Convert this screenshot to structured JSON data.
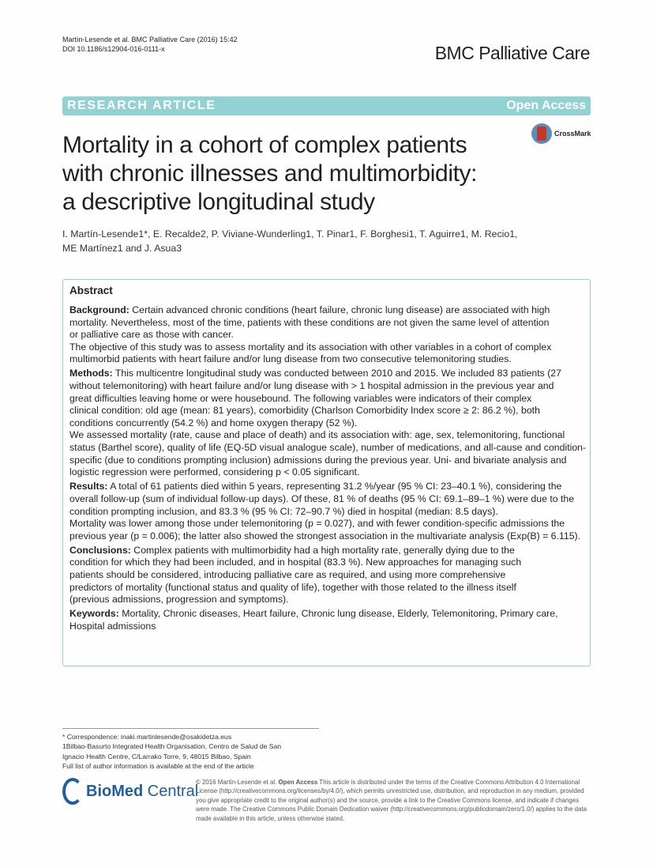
{
  "header": {
    "running_line1": "Martín-Lesende et al. BMC Palliative Care (2016) 15:42",
    "doi": "DOI 10.1186/s12904-016-0111-x",
    "journal": "BMC Palliative Care"
  },
  "banner": {
    "type": "RESEARCH ARTICLE",
    "access": "Open Access"
  },
  "crossmark": "CrossMark",
  "title_lines": [
    "Mortality in a cohort of complex patients",
    "with chronic illnesses and multimorbidity:",
    "a descriptive longitudinal study"
  ],
  "authors": {
    "line1": "I. Martín-Lesende1*, E. Recalde2, P. Viviane-Wunderling1, T. Pinar1, F. Borghesi1, T. Aguirre1, M. Recio1,",
    "line2": "ME Martínez1 and J. Asua3"
  },
  "abstract": {
    "heading": "Abstract",
    "paragraphs": [
      {
        "label": "Background:",
        "lines": [
          " Certain advanced chronic conditions (heart failure, chronic lung disease) are associated with high",
          "mortality. Nevertheless, most of the time, patients with these conditions are not given the same level of attention",
          "or palliative care as those with cancer.",
          "The objective of this study was to assess mortality and its association with other variables in a cohort of complex",
          "multimorbid patients with heart failure and/or lung disease from two consecutive telemonitoring studies."
        ]
      },
      {
        "label": "Methods:",
        "lines": [
          " This multicentre longitudinal study was conducted between 2010 and 2015. We included 83 patients (27",
          "without telemonitoring) with heart failure and/or lung disease with > 1 hospital admission in the previous year and",
          "great difficulties leaving home or were housebound. The following variables were indicators of their complex",
          "clinical condition: old age (mean: 81 years), comorbidity (Charlson Comorbidity Index score ≥ 2: 86.2 %), both",
          "conditions concurrently (54.2 %) and home oxygen therapy (52 %).",
          "We assessed mortality (rate, cause and place of death) and its association with: age, sex, telemonitoring, functional",
          "status (Barthel score), quality of life (EQ-5D visual analogue scale), number of medications, and all-cause and condition-",
          "specific (due to conditions prompting inclusion) admissions during the previous year. Uni- and bivariate analysis and",
          "logistic regression were performed, considering p < 0.05 significant."
        ]
      },
      {
        "label": "Results:",
        "lines": [
          " A total of 61 patients died within 5 years, representing 31.2 %/year (95 % CI: 23–40.1 %), considering the",
          "overall follow-up (sum of individual follow-up days). Of these, 81 % of deaths (95 % CI: 69.1–89–1 %) were due to the",
          "condition prompting inclusion, and 83.3 % (95 % CI: 72–90.7 %) died in hospital (median: 8.5 days).",
          "Mortality was lower among those under telemonitoring (p = 0.027), and with fewer condition-specific admissions the",
          "previous year (p = 0.006); the latter also showed the strongest association in the multivariate analysis (Exp(B) = 6.115)."
        ]
      },
      {
        "label": "Conclusions:",
        "lines": [
          " Complex patients with multimorbidity had a high mortality rate, generally dying due to the",
          "condition for which they had been included, and in hospital (83.3 %). New approaches for managing such",
          "patients should be considered, introducing palliative care as required, and using more comprehensive",
          "predictors of mortality (functional status and quality of life), together with those related to the illness itself",
          "(previous admissions, progression and symptoms)."
        ]
      },
      {
        "label": "Keywords:",
        "lines": [
          " Mortality, Chronic diseases, Heart failure, Chronic lung disease, Elderly, Telemonitoring, Primary care,",
          "Hospital admissions"
        ]
      }
    ]
  },
  "footnotes": [
    "* Correspondence: inaki.martinlesende@osakidetza.eus",
    "1Bilbao-Basurto Integrated Health Organisation, Centro de Salud de San",
    "Ignacio Health Centre, C/Larrako Torre, 9, 48015 Bilbao, Spain",
    "Full list of author information is available at the end of the article"
  ],
  "publisher_logo": {
    "bold": "BioMed",
    "light": " Central"
  },
  "license": {
    "prefix": "© 2016 Martín-Lesende et al. ",
    "open": "Open Access",
    "text": " This article is distributed under the terms of the Creative Commons Attribution 4.0 International License (http://creativecommons.org/licenses/by/4.0/), which permits unrestricted use, distribution, and reproduction in any medium, provided you give appropriate credit to the original author(s) and the source, provide a link to the Creative Commons license, and indicate if changes were made. The Creative Commons Public Domain Dedication waiver (http://creativecommons.org/publicdomain/zero/1.0/) applies to the data made available in this article, unless otherwise stated."
  },
  "colors": {
    "banner": "#92d2d3",
    "brand": "#1f5fa0"
  }
}
